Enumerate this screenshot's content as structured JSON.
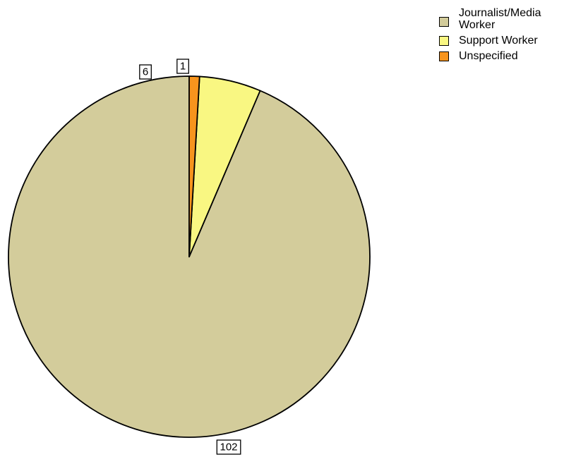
{
  "chart_data": {
    "type": "pie",
    "title": "",
    "start_angle_deg": 0,
    "direction": "counterclockwise",
    "legend_position": "top-right",
    "slices": [
      {
        "label": "Journalist/Media Worker",
        "value": 102,
        "color": "#D3CC9B",
        "value_label": "102"
      },
      {
        "label": "Support Worker",
        "value": 6,
        "color": "#F9F782",
        "value_label": "6"
      },
      {
        "label": "Unspecified",
        "value": 1,
        "color": "#F7941D",
        "value_label": "1"
      }
    ]
  },
  "legend": {
    "items": [
      {
        "label": "Journalist/Media Worker",
        "color": "#D3CC9B"
      },
      {
        "label": "Support Worker",
        "color": "#F9F782"
      },
      {
        "label": "Unspecified",
        "color": "#F7941D"
      }
    ]
  }
}
